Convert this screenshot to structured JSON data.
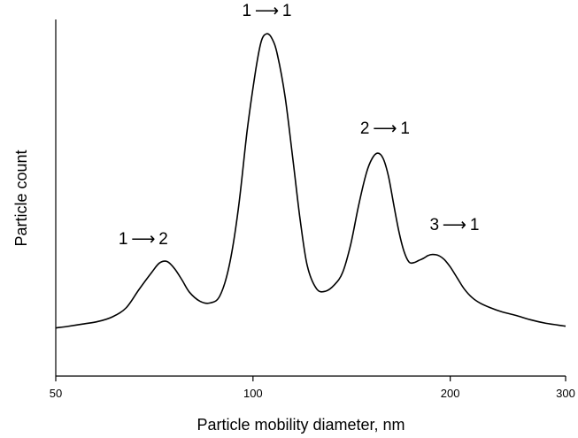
{
  "chart_data": {
    "type": "line",
    "title": "",
    "xlabel": "Particle mobility diameter, nm",
    "ylabel": "Particle count",
    "x_scale": "log",
    "xlim": [
      50,
      300
    ],
    "ylim": [
      0,
      100
    ],
    "x_ticks": [
      50,
      100,
      200,
      300
    ],
    "y_ticks": [],
    "grid": false,
    "legend": "none",
    "line_color": "#000000",
    "series": [
      {
        "x": [
          50,
          52,
          55,
          58,
          61,
          64,
          67,
          70,
          72,
          74,
          76,
          78,
          80,
          83,
          86,
          89,
          92,
          95,
          98,
          101,
          103,
          105,
          107,
          109,
          112,
          115,
          118,
          121,
          125,
          129,
          133,
          137,
          141,
          145,
          149,
          152,
          155,
          158,
          161,
          164,
          167,
          170,
          173,
          176,
          179,
          182,
          185,
          188,
          192,
          196,
          200,
          205,
          210,
          216,
          222,
          230,
          240,
          252,
          265,
          280,
          300
        ],
        "values": [
          13.5,
          13.9,
          14.6,
          15.3,
          16.6,
          19.1,
          24.3,
          29.0,
          31.7,
          32.1,
          30.0,
          26.8,
          23.5,
          21.0,
          20.5,
          22.5,
          31.0,
          47.0,
          69.0,
          86.0,
          94.0,
          96.0,
          94.5,
          90.0,
          78.0,
          61.0,
          44.0,
          31.0,
          24.5,
          23.8,
          25.5,
          29.0,
          37.0,
          48.0,
          57.0,
          61.0,
          62.5,
          61.0,
          56.0,
          48.0,
          40.5,
          35.0,
          32.0,
          31.8,
          32.4,
          33.0,
          33.8,
          34.1,
          33.8,
          32.6,
          30.6,
          27.5,
          24.5,
          22.0,
          20.5,
          19.2,
          18.0,
          17.0,
          15.8,
          14.8,
          14.0
        ]
      }
    ],
    "annotations": [
      {
        "text": "1 ⟶ 2",
        "x": 68,
        "y": 37
      },
      {
        "text": "1 ⟶ 1",
        "x": 105,
        "y": 101
      },
      {
        "text": "2 ⟶ 1",
        "x": 159,
        "y": 68
      },
      {
        "text": "3 ⟶ 1",
        "x": 203,
        "y": 41
      }
    ]
  }
}
